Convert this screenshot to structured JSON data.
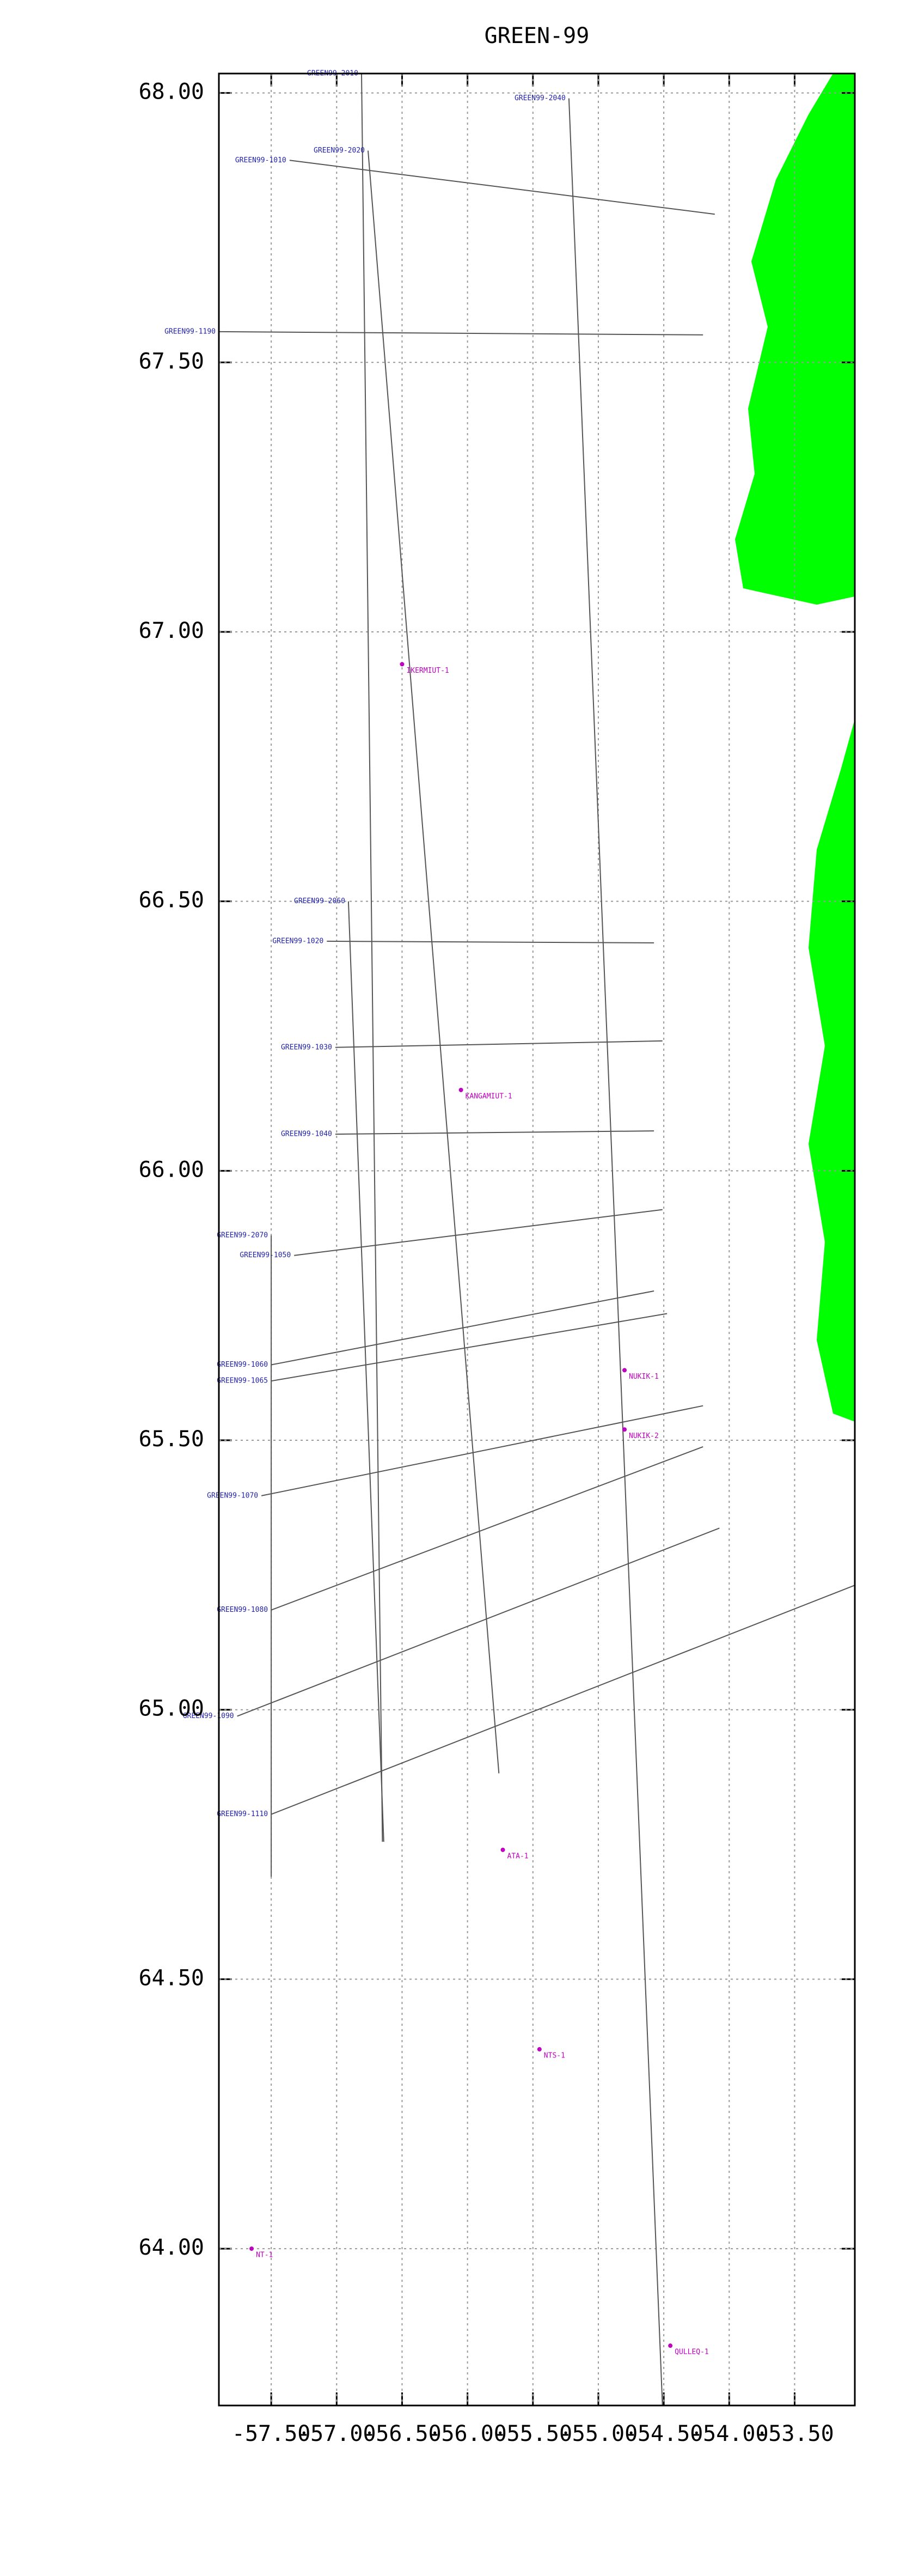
{
  "chart_data": {
    "type": "line",
    "title": "GREEN-99",
    "xlim": [
      -57.9,
      -53.04
    ],
    "ylim": [
      63.709,
      68.036
    ],
    "xticks": [
      {
        "value": -57.5,
        "label": "-57.50"
      },
      {
        "value": -57.0,
        "label": "-57.00"
      },
      {
        "value": -56.5,
        "label": "-56.50"
      },
      {
        "value": -56.0,
        "label": "-56.00"
      },
      {
        "value": -55.5,
        "label": "-55.50"
      },
      {
        "value": -55.0,
        "label": "-55.00"
      },
      {
        "value": -54.5,
        "label": "-54.50"
      },
      {
        "value": -54.0,
        "label": "-54.00"
      },
      {
        "value": -53.5,
        "label": "-53.50"
      }
    ],
    "yticks": [
      {
        "value": 64.0,
        "label": "64.00"
      },
      {
        "value": 64.5,
        "label": "64.50"
      },
      {
        "value": 65.0,
        "label": "65.00"
      },
      {
        "value": 65.5,
        "label": "65.50"
      },
      {
        "value": 66.0,
        "label": "66.00"
      },
      {
        "value": 66.5,
        "label": "66.50"
      },
      {
        "value": 67.0,
        "label": "67.00"
      },
      {
        "value": 67.5,
        "label": "67.50"
      },
      {
        "value": 68.0,
        "label": "68.00"
      }
    ],
    "grid": true,
    "color": "#555555",
    "series": [
      {
        "name": "GREEN99-2010",
        "x": [
          -56.81,
          -56.65
        ],
        "y": [
          68.036,
          64.755
        ]
      },
      {
        "name": "GREEN99-2040",
        "x": [
          -55.225,
          -54.51
        ],
        "y": [
          67.99,
          63.709
        ]
      },
      {
        "name": "GREEN99-2020",
        "x": [
          -56.76,
          -55.76
        ],
        "y": [
          67.893,
          64.882
        ]
      },
      {
        "name": "GREEN99-2060",
        "x": [
          -56.91,
          -56.64
        ],
        "y": [
          66.5,
          64.755
        ]
      },
      {
        "name": "GREEN99-2070",
        "x": [
          -57.5,
          -57.5
        ],
        "y": [
          65.88,
          64.69
        ]
      },
      {
        "name": "GREEN99-1010",
        "x": [
          -57.36,
          -54.11
        ],
        "y": [
          67.875,
          67.775
        ]
      },
      {
        "name": "GREEN99-1190",
        "x": [
          -57.9,
          -54.2
        ],
        "y": [
          67.557,
          67.551
        ]
      },
      {
        "name": "GREEN99-1020",
        "x": [
          -57.075,
          -54.575
        ],
        "y": [
          66.426,
          66.423
        ]
      },
      {
        "name": "GREEN99-1030",
        "x": [
          -57.01,
          -54.51
        ],
        "y": [
          66.229,
          66.241
        ]
      },
      {
        "name": "GREEN99-1040",
        "x": [
          -57.01,
          -54.575
        ],
        "y": [
          66.068,
          66.074
        ]
      },
      {
        "name": "GREEN99-1050",
        "x": [
          -57.325,
          -54.51
        ],
        "y": [
          65.843,
          65.928
        ]
      },
      {
        "name": "GREEN99-1060",
        "x": [
          -57.5,
          -54.575
        ],
        "y": [
          65.64,
          65.777
        ]
      },
      {
        "name": "GREEN99-1065",
        "x": [
          -57.5,
          -54.475
        ],
        "y": [
          65.61,
          65.735
        ]
      },
      {
        "name": "GREEN99-1070",
        "x": [
          -57.575,
          -54.2
        ],
        "y": [
          65.397,
          65.564
        ]
      },
      {
        "name": "GREEN99-1080",
        "x": [
          -57.5,
          -54.2
        ],
        "y": [
          65.185,
          65.488
        ]
      },
      {
        "name": "GREEN99-1090",
        "x": [
          -57.76,
          -54.075
        ],
        "y": [
          64.988,
          65.337
        ]
      },
      {
        "name": "GREEN99-1110",
        "x": [
          -57.5,
          -53.04
        ],
        "y": [
          64.806,
          65.231
        ]
      }
    ],
    "wells": [
      {
        "name": "IKERMIUT-1",
        "lon": -56.5,
        "lat": 66.94
      },
      {
        "name": "KANGAMIUT-1",
        "lon": -56.05,
        "lat": 66.15
      },
      {
        "name": "NUKIK-1",
        "lon": -54.8,
        "lat": 65.63
      },
      {
        "name": "NUKIK-2",
        "lon": -54.8,
        "lat": 65.52
      },
      {
        "name": "ATA-1",
        "lon": -55.73,
        "lat": 64.74
      },
      {
        "name": "NTS-1",
        "lon": -55.45,
        "lat": 64.37
      },
      {
        "name": "QULLEQ-1",
        "lon": -54.45,
        "lat": 63.82
      },
      {
        "name": "NT-1",
        "lon": -57.65,
        "lat": 64.0
      }
    ]
  }
}
